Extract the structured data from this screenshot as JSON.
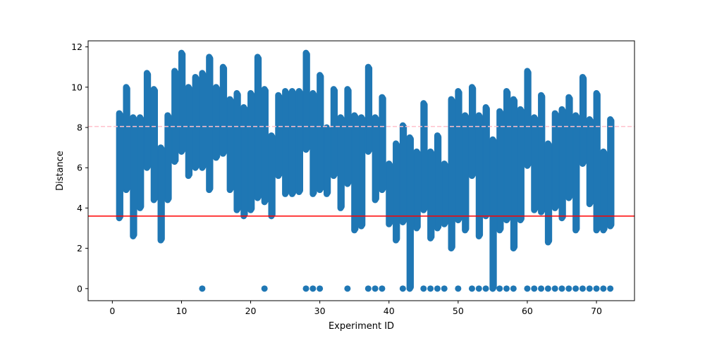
{
  "chart_data": {
    "type": "scatter",
    "title": "",
    "xlabel": "Experiment ID",
    "ylabel": "Distance",
    "xlim": [
      -3.5,
      75.5
    ],
    "ylim": [
      -0.6,
      12.3
    ],
    "xticks": [
      0,
      10,
      20,
      30,
      40,
      50,
      60,
      70
    ],
    "yticks": [
      0,
      2,
      4,
      6,
      8,
      10,
      12
    ],
    "grid": false,
    "marker_color": "#1f77b4",
    "series": [
      {
        "columns": [
          {
            "x": 1,
            "min": 3.5,
            "max": 8.7
          },
          {
            "x": 2,
            "min": 4.9,
            "max": 10.0
          },
          {
            "x": 3,
            "min": 2.6,
            "max": 8.5
          },
          {
            "x": 4,
            "min": 4.0,
            "max": 8.5
          },
          {
            "x": 5,
            "min": 6.0,
            "max": 10.7
          },
          {
            "x": 6,
            "min": 4.4,
            "max": 9.9
          },
          {
            "x": 7,
            "min": 2.4,
            "max": 7.0
          },
          {
            "x": 8,
            "min": 4.4,
            "max": 8.6
          },
          {
            "x": 9,
            "min": 6.3,
            "max": 10.8
          },
          {
            "x": 10,
            "min": 6.8,
            "max": 11.7
          },
          {
            "x": 11,
            "min": 5.6,
            "max": 10.0
          },
          {
            "x": 12,
            "min": 6.0,
            "max": 10.5
          },
          {
            "x": 13,
            "min": 6.0,
            "max": 10.7
          },
          {
            "x": 14,
            "min": 4.9,
            "max": 11.5
          },
          {
            "x": 15,
            "min": 6.5,
            "max": 10.0
          },
          {
            "x": 16,
            "min": 6.7,
            "max": 11.0
          },
          {
            "x": 17,
            "min": 4.9,
            "max": 9.4
          },
          {
            "x": 18,
            "min": 3.9,
            "max": 9.7
          },
          {
            "x": 19,
            "min": 3.6,
            "max": 9.0
          },
          {
            "x": 20,
            "min": 3.9,
            "max": 9.7
          },
          {
            "x": 21,
            "min": 4.5,
            "max": 11.5
          },
          {
            "x": 22,
            "min": 4.3,
            "max": 9.9
          },
          {
            "x": 23,
            "min": 3.6,
            "max": 7.6
          },
          {
            "x": 24,
            "min": 5.6,
            "max": 9.6
          },
          {
            "x": 25,
            "min": 4.7,
            "max": 9.8
          },
          {
            "x": 26,
            "min": 4.7,
            "max": 9.8
          },
          {
            "x": 27,
            "min": 4.8,
            "max": 9.8
          },
          {
            "x": 28,
            "min": 6.9,
            "max": 11.7
          },
          {
            "x": 29,
            "min": 4.7,
            "max": 9.7
          },
          {
            "x": 30,
            "min": 4.9,
            "max": 10.6
          },
          {
            "x": 31,
            "min": 4.7,
            "max": 8.0
          },
          {
            "x": 32,
            "min": 5.6,
            "max": 9.9
          },
          {
            "x": 33,
            "min": 4.0,
            "max": 8.5
          },
          {
            "x": 34,
            "min": 5.2,
            "max": 9.9
          },
          {
            "x": 35,
            "min": 2.9,
            "max": 8.6
          },
          {
            "x": 36,
            "min": 3.1,
            "max": 8.5
          },
          {
            "x": 37,
            "min": 6.8,
            "max": 11.0
          },
          {
            "x": 38,
            "min": 4.4,
            "max": 8.5
          },
          {
            "x": 39,
            "min": 4.9,
            "max": 9.5
          },
          {
            "x": 40,
            "min": 3.2,
            "max": 6.2
          },
          {
            "x": 41,
            "min": 2.4,
            "max": 7.2
          },
          {
            "x": 42,
            "min": 3.3,
            "max": 8.1
          },
          {
            "x": 43,
            "min": 0.0,
            "max": 7.5
          },
          {
            "x": 44,
            "min": 3.0,
            "max": 6.8
          },
          {
            "x": 45,
            "min": 3.9,
            "max": 9.2
          },
          {
            "x": 46,
            "min": 2.5,
            "max": 6.8
          },
          {
            "x": 47,
            "min": 3.0,
            "max": 7.6
          },
          {
            "x": 48,
            "min": 3.2,
            "max": 6.2
          },
          {
            "x": 49,
            "min": 2.0,
            "max": 9.4
          },
          {
            "x": 50,
            "min": 3.4,
            "max": 9.8
          },
          {
            "x": 51,
            "min": 2.9,
            "max": 8.6
          },
          {
            "x": 52,
            "min": 5.6,
            "max": 10.0
          },
          {
            "x": 53,
            "min": 2.6,
            "max": 8.6
          },
          {
            "x": 54,
            "min": 3.6,
            "max": 9.0
          },
          {
            "x": 55,
            "min": 0.0,
            "max": 7.4
          },
          {
            "x": 56,
            "min": 2.9,
            "max": 8.8
          },
          {
            "x": 57,
            "min": 3.4,
            "max": 9.8
          },
          {
            "x": 58,
            "min": 2.0,
            "max": 9.4
          },
          {
            "x": 59,
            "min": 3.4,
            "max": 8.9
          },
          {
            "x": 60,
            "min": 6.1,
            "max": 10.8
          },
          {
            "x": 61,
            "min": 3.9,
            "max": 8.5
          },
          {
            "x": 62,
            "min": 3.8,
            "max": 9.6
          },
          {
            "x": 63,
            "min": 2.3,
            "max": 7.2
          },
          {
            "x": 64,
            "min": 4.0,
            "max": 8.7
          },
          {
            "x": 65,
            "min": 3.5,
            "max": 8.9
          },
          {
            "x": 66,
            "min": 4.5,
            "max": 9.5
          },
          {
            "x": 67,
            "min": 2.9,
            "max": 8.6
          },
          {
            "x": 68,
            "min": 6.2,
            "max": 10.5
          },
          {
            "x": 69,
            "min": 4.2,
            "max": 8.4
          },
          {
            "x": 70,
            "min": 2.9,
            "max": 9.7
          },
          {
            "x": 71,
            "min": 2.9,
            "max": 6.8
          },
          {
            "x": 72,
            "min": 3.1,
            "max": 8.4
          }
        ],
        "zero_points": [
          {
            "x": 13,
            "y": 0
          },
          {
            "x": 22,
            "y": 0
          },
          {
            "x": 28,
            "y": 0
          },
          {
            "x": 29,
            "y": 0
          },
          {
            "x": 30,
            "y": 0
          },
          {
            "x": 34,
            "y": 0
          },
          {
            "x": 37,
            "y": 0
          },
          {
            "x": 38,
            "y": 0
          },
          {
            "x": 39,
            "y": 0
          },
          {
            "x": 42,
            "y": 0
          },
          {
            "x": 43,
            "y": 0
          },
          {
            "x": 45,
            "y": 0
          },
          {
            "x": 46,
            "y": 0
          },
          {
            "x": 47,
            "y": 0
          },
          {
            "x": 48,
            "y": 0
          },
          {
            "x": 50,
            "y": 0
          },
          {
            "x": 52,
            "y": 0
          },
          {
            "x": 53,
            "y": 0
          },
          {
            "x": 54,
            "y": 0
          },
          {
            "x": 55,
            "y": 0
          },
          {
            "x": 56,
            "y": 0
          },
          {
            "x": 57,
            "y": 0
          },
          {
            "x": 58,
            "y": 0
          },
          {
            "x": 60,
            "y": 0
          },
          {
            "x": 61,
            "y": 0
          },
          {
            "x": 62,
            "y": 0
          },
          {
            "x": 63,
            "y": 0
          },
          {
            "x": 64,
            "y": 0
          },
          {
            "x": 65,
            "y": 0
          },
          {
            "x": 66,
            "y": 0
          },
          {
            "x": 67,
            "y": 0
          },
          {
            "x": 68,
            "y": 0
          },
          {
            "x": 69,
            "y": 0
          },
          {
            "x": 70,
            "y": 0
          },
          {
            "x": 71,
            "y": 0
          },
          {
            "x": 72,
            "y": 0
          }
        ]
      }
    ],
    "hlines": [
      {
        "y": 8.05,
        "color": "#ffc0cb",
        "style": "dashed"
      },
      {
        "y": 3.6,
        "color": "#ff0000",
        "style": "solid"
      }
    ]
  }
}
